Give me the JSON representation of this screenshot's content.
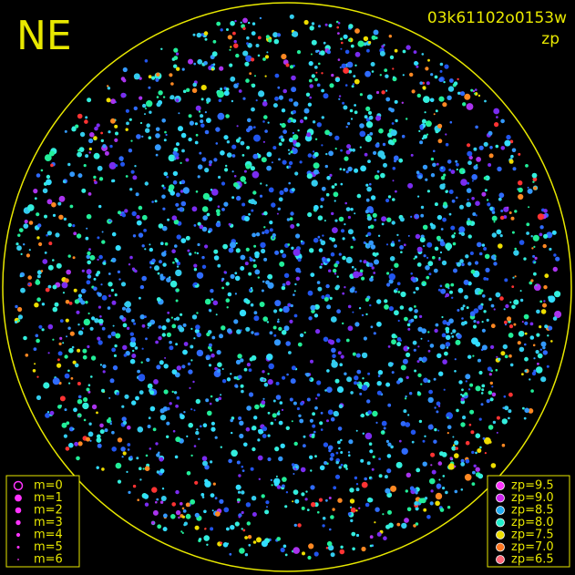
{
  "header": {
    "label": "NE",
    "frame_id": "03k61102o0153w",
    "mode": "zp"
  },
  "magnitude_legend": [
    "m=0",
    "m=1",
    "m=2",
    "m=3",
    "m=4",
    "m=5",
    "m=6"
  ],
  "zp_legend": [
    {
      "label": "zp=9.5",
      "color": "#ff33ff"
    },
    {
      "label": "zp=9.0",
      "color": "#cc22ee"
    },
    {
      "label": "zp=8.5",
      "color": "#22aaee"
    },
    {
      "label": "zp=8.0",
      "color": "#22eecc"
    },
    {
      "label": "zp=7.5",
      "color": "#eedd00"
    },
    {
      "label": "zp=7.0",
      "color": "#ff7722"
    },
    {
      "label": "zp=6.5",
      "color": "#ff6677"
    }
  ]
}
